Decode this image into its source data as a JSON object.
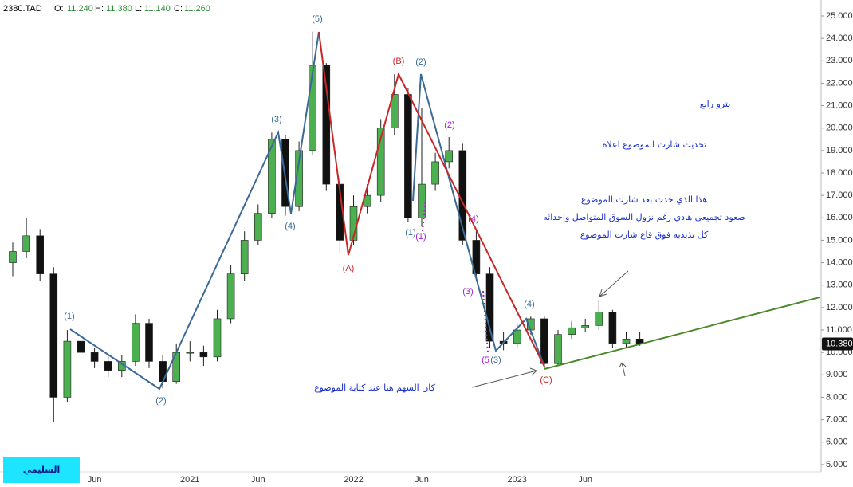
{
  "chart_data": {
    "type": "candlestick",
    "header": {
      "symbol": "2380.TAD",
      "o_label": "O:",
      "o": "11.240",
      "h_label": "H:",
      "h": "11.380",
      "l_label": "L:",
      "l": "11.140",
      "c_label": "C:",
      "c": "11.260"
    },
    "categories": [
      null,
      null,
      null,
      null,
      null,
      null,
      "Jun",
      null,
      null,
      null,
      null,
      null,
      null,
      "2021",
      null,
      null,
      null,
      null,
      "Jun",
      null,
      null,
      null,
      null,
      null,
      null,
      "2022",
      null,
      null,
      null,
      null,
      "Jun",
      null,
      null,
      null,
      null,
      null,
      null,
      "2023",
      null,
      null,
      null,
      null,
      "Jun",
      null,
      null,
      null,
      null
    ],
    "open": [
      14.0,
      14.5,
      15.2,
      13.5,
      8.0,
      10.5,
      10.0,
      9.6,
      9.2,
      9.6,
      11.3,
      9.6,
      8.7,
      10.0,
      10.0,
      9.8,
      11.5,
      13.5,
      15.0,
      16.2,
      19.5,
      16.5,
      19.0,
      22.8,
      17.5,
      15.0,
      16.5,
      17.0,
      20.0,
      21.5,
      16.0,
      17.5,
      18.5,
      19.0,
      15.0,
      13.5,
      10.5,
      10.4,
      11.0,
      11.5,
      9.5,
      10.8,
      11.1,
      11.2,
      11.8,
      10.4,
      10.6
    ],
    "high": [
      14.9,
      16.0,
      15.5,
      13.8,
      11.0,
      10.9,
      10.2,
      9.9,
      9.9,
      11.7,
      11.5,
      9.9,
      10.4,
      10.5,
      10.3,
      11.9,
      13.9,
      15.4,
      16.6,
      19.8,
      19.7,
      19.4,
      24.3,
      22.9,
      17.8,
      17.0,
      17.5,
      20.4,
      22.4,
      21.8,
      20.9,
      18.9,
      19.6,
      19.3,
      15.4,
      13.8,
      10.9,
      11.3,
      11.6,
      11.6,
      11.0,
      11.4,
      11.5,
      12.3,
      11.9,
      10.9,
      10.9
    ],
    "low": [
      13.4,
      14.2,
      13.2,
      6.9,
      7.8,
      9.7,
      9.3,
      8.9,
      8.9,
      9.4,
      9.3,
      8.4,
      8.6,
      9.6,
      9.4,
      9.6,
      11.3,
      13.2,
      14.8,
      16.0,
      16.1,
      16.3,
      18.8,
      17.2,
      14.4,
      14.8,
      16.2,
      16.7,
      19.7,
      15.8,
      15.6,
      17.2,
      18.2,
      14.8,
      13.2,
      10.2,
      10.1,
      10.2,
      10.8,
      9.3,
      9.4,
      10.6,
      10.9,
      11.0,
      10.2,
      10.2,
      10.3
    ],
    "close": [
      14.5,
      15.2,
      13.5,
      8.0,
      10.5,
      10.0,
      9.6,
      9.2,
      9.6,
      11.3,
      9.6,
      8.7,
      10.0,
      10.0,
      9.8,
      11.5,
      13.5,
      15.0,
      16.2,
      19.5,
      16.5,
      19.0,
      22.8,
      17.5,
      15.0,
      16.5,
      17.0,
      20.0,
      21.5,
      16.0,
      17.5,
      18.5,
      19.0,
      15.0,
      13.5,
      10.5,
      10.4,
      11.0,
      11.5,
      9.5,
      10.8,
      11.1,
      11.2,
      11.8,
      10.4,
      10.6,
      10.38
    ],
    "up_color": "#4caf50",
    "down_color": "#111111",
    "last_price": {
      "value": 10.38,
      "label": "10.380"
    },
    "ylim": [
      4.57,
      25.71
    ],
    "yticks": [
      {
        "value": 5,
        "label": "5.000"
      },
      {
        "value": 6,
        "label": "6.000"
      },
      {
        "value": 7,
        "label": "7.000"
      },
      {
        "value": 8,
        "label": "8.000"
      },
      {
        "value": 9,
        "label": "9.000"
      },
      {
        "value": 10,
        "label": "10.000"
      },
      {
        "value": 11,
        "label": "11.000"
      },
      {
        "value": 12,
        "label": "12.000"
      },
      {
        "value": 13,
        "label": "13.000"
      },
      {
        "value": 14,
        "label": "14.000"
      },
      {
        "value": 15,
        "label": "15.000"
      },
      {
        "value": 16,
        "label": "16.000"
      },
      {
        "value": 17,
        "label": "17.000"
      },
      {
        "value": 18,
        "label": "18.000"
      },
      {
        "value": 19,
        "label": "19.000"
      },
      {
        "value": 20,
        "label": "20.000"
      },
      {
        "value": 21,
        "label": "21.000"
      },
      {
        "value": 22,
        "label": "22.000"
      },
      {
        "value": 23,
        "label": "23.000"
      },
      {
        "value": 24,
        "label": "24.000"
      },
      {
        "value": 25,
        "label": "25.000"
      }
    ],
    "wave_labels": [
      {
        "text": "(1)",
        "color": "#3b6a96"
      },
      {
        "text": "(2)",
        "color": "#3b6a96"
      },
      {
        "text": "(3)",
        "color": "#3b6a96"
      },
      {
        "text": "(4)",
        "color": "#3b6a96"
      },
      {
        "text": "(5)",
        "color": "#3b6a96"
      },
      {
        "text": "(2)",
        "color": "#3b6a96"
      },
      {
        "text": "(1)",
        "color": "#3b6a96"
      },
      {
        "text": "(3)",
        "color": "#3b6a96"
      },
      {
        "text": "(4)",
        "color": "#3b6a96"
      },
      {
        "text": "(A)",
        "color": "#c62828"
      },
      {
        "text": "(B)",
        "color": "#c62828"
      },
      {
        "text": "(C)",
        "color": "#c62828"
      },
      {
        "text": "(2)",
        "color": "#a020d0"
      },
      {
        "text": "(4)",
        "color": "#a020d0"
      },
      {
        "text": "(3)",
        "color": "#a020d0"
      },
      {
        "text": "(1)",
        "color": "#a020d0"
      },
      {
        "text": "(5",
        "color": "#a020d0"
      }
    ],
    "annotations": [
      {
        "text": "بترو رابغ",
        "color": "#1a2fc9"
      },
      {
        "text": "تحديث شارت الموضوع اعلاه",
        "color": "#1a2fc9"
      },
      {
        "text": "هذا الذي حدث بعد شارت الموضوع",
        "color": "#1a2fc9"
      },
      {
        "text": "صعود تجميعي هادي رغم نزول السوق المتواصل واحداثه",
        "color": "#1a2fc9"
      },
      {
        "text": "كل تذبذبه فوق قاع شارت الموضوع",
        "color": "#1a2fc9"
      },
      {
        "text": "كان السهم هنا عند كتابة الموضوع",
        "color": "#1a2fc9"
      }
    ],
    "logo": "السليمي"
  }
}
